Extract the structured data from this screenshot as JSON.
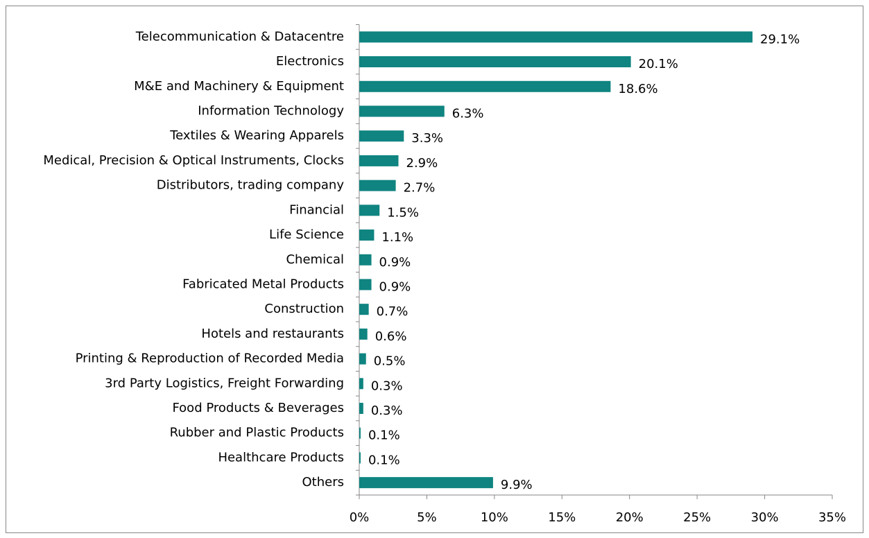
{
  "chart_data": {
    "type": "barh",
    "categories": [
      "Telecommunication & Datacentre",
      "Electronics",
      "M&E and Machinery & Equipment",
      "Information Technology",
      "Textiles & Wearing Apparels",
      "Medical, Precision & Optical Instruments, Clocks",
      "Distributors, trading company",
      "Financial",
      "Life Science",
      "Chemical",
      "Fabricated Metal Products",
      "Construction",
      "Hotels and restaurants",
      "Printing & Reproduction of Recorded Media",
      "3rd Party Logistics, Freight Forwarding",
      "Food Products & Beverages",
      "Rubber and Plastic Products",
      "Healthcare Products",
      "Others"
    ],
    "values": [
      29.1,
      20.1,
      18.6,
      6.3,
      3.3,
      2.9,
      2.7,
      1.5,
      1.1,
      0.9,
      0.9,
      0.7,
      0.6,
      0.5,
      0.3,
      0.3,
      0.1,
      0.1,
      9.9
    ],
    "value_labels": [
      "29.1%",
      "20.1%",
      "18.6%",
      "6.3%",
      "3.3%",
      "2.9%",
      "2.7%",
      "1.5%",
      "1.1%",
      "0.9%",
      "0.9%",
      "0.7%",
      "0.6%",
      "0.5%",
      "0.3%",
      "0.3%",
      "0.1%",
      "0.1%",
      "9.9%"
    ],
    "color": "#0f8480",
    "xlim": [
      0,
      35
    ],
    "xticks": [
      {
        "value": 0,
        "label": "0%"
      },
      {
        "value": 5,
        "label": "5%"
      },
      {
        "value": 10,
        "label": "10%"
      },
      {
        "value": 15,
        "label": "15%"
      },
      {
        "value": 20,
        "label": "20%"
      },
      {
        "value": 25,
        "label": "25%"
      },
      {
        "value": 30,
        "label": "30%"
      },
      {
        "value": 35,
        "label": "35%"
      }
    ],
    "grid": false
  }
}
